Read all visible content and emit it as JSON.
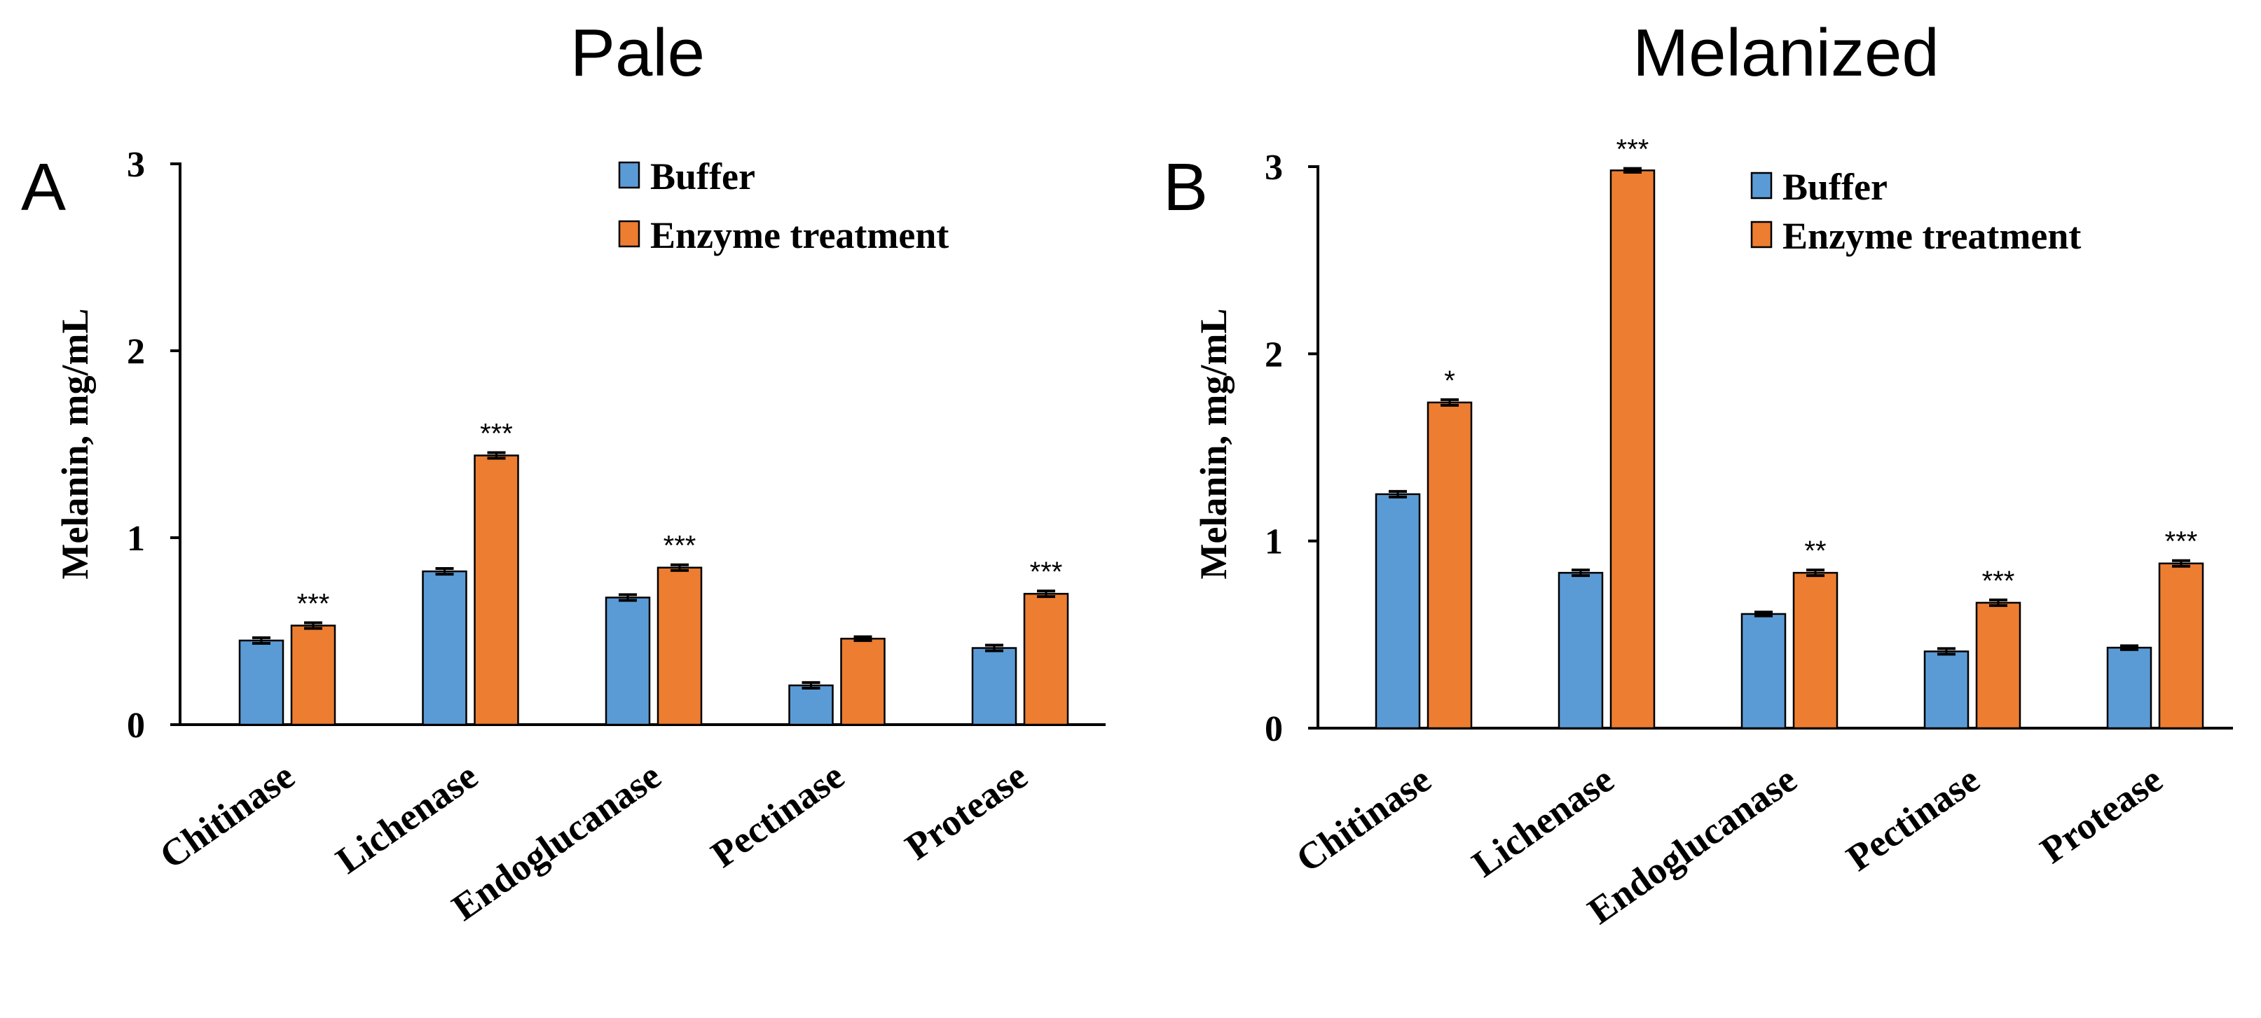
{
  "colors": {
    "buffer": "#5b9bd5",
    "enzyme": "#ed7d31",
    "axis": "#000000",
    "text": "#000000"
  },
  "chart_data": [
    {
      "panel_label": "A",
      "title": "Pale",
      "type": "bar",
      "ylabel": "Melanin, mg/mL",
      "ylim": [
        0,
        3
      ],
      "yticks": [
        "0",
        "1",
        "2",
        "3"
      ],
      "categories": [
        "Chitinase",
        "Lichenase",
        "Endoglucanase",
        "Pectinase",
        "Protease"
      ],
      "legend": [
        "Buffer",
        "Enzyme treatment"
      ],
      "series": [
        {
          "name": "Buffer",
          "values": [
            0.45,
            0.82,
            0.68,
            0.21,
            0.41
          ],
          "errors": [
            0.015,
            0.015,
            0.015,
            0.015,
            0.015
          ]
        },
        {
          "name": "Enzyme treatment",
          "values": [
            0.53,
            1.44,
            0.84,
            0.46,
            0.7
          ],
          "errors": [
            0.015,
            0.015,
            0.015,
            0.01,
            0.015
          ]
        }
      ],
      "significance": [
        "***",
        "***",
        "***",
        "",
        "***"
      ]
    },
    {
      "panel_label": "B",
      "title": "Melanized",
      "type": "bar",
      "ylabel": "Melanin, mg/mL",
      "ylim": [
        0,
        3
      ],
      "yticks": [
        "0",
        "1",
        "2",
        "3"
      ],
      "categories": [
        "Chitinase",
        "Lichenase",
        "Endoglucanase",
        "Pectinase",
        "Protease"
      ],
      "legend": [
        "Buffer",
        "Enzyme treatment"
      ],
      "series": [
        {
          "name": "Buffer",
          "values": [
            1.25,
            0.83,
            0.61,
            0.41,
            0.43
          ],
          "errors": [
            0.015,
            0.015,
            0.01,
            0.015,
            0.01
          ]
        },
        {
          "name": "Enzyme treatment",
          "values": [
            1.74,
            2.98,
            0.83,
            0.67,
            0.88
          ],
          "errors": [
            0.015,
            0.01,
            0.015,
            0.015,
            0.015
          ]
        }
      ],
      "significance": [
        "*",
        "***",
        "**",
        "***",
        "***"
      ]
    }
  ]
}
